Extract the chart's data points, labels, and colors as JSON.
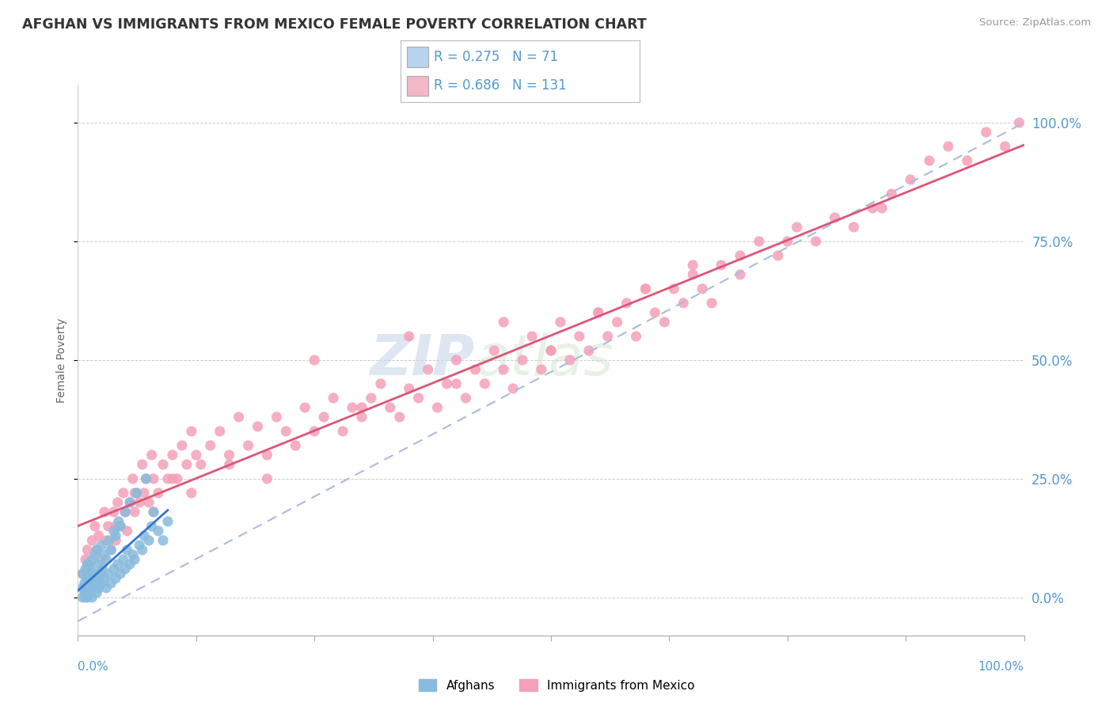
{
  "title": "AFGHAN VS IMMIGRANTS FROM MEXICO FEMALE POVERTY CORRELATION CHART",
  "source": "Source: ZipAtlas.com",
  "ylabel": "Female Poverty",
  "ytick_vals": [
    0.0,
    0.25,
    0.5,
    0.75,
    1.0
  ],
  "ytick_labels": [
    "0.0%",
    "25.0%",
    "50.0%",
    "75.0%",
    "100.0%"
  ],
  "xlim": [
    0.0,
    1.0
  ],
  "ylim": [
    -0.08,
    1.08
  ],
  "legend_afghan_R": "0.275",
  "legend_afghan_N": "71",
  "legend_mexico_R": "0.686",
  "legend_mexico_N": "131",
  "afghan_color": "#88bbdd",
  "mexico_color": "#f4a0b8",
  "afghan_line_color": "#3377cc",
  "mexico_line_color": "#dd5577",
  "mexico_dash_color": "#aabbdd",
  "legend_afghan_patch_color": "#b8d4ee",
  "legend_mexico_patch_color": "#f4b8c8",
  "background_color": "#ffffff",
  "grid_color": "#cccccc",
  "title_color": "#333333",
  "source_color": "#999999",
  "axis_label_color": "#5599cc",
  "watermark_text": "ZIP",
  "watermark_text2": "atlas",
  "bottom_legend_afghan_label": "Afghans",
  "bottom_legend_mexico_label": "Immigrants from Mexico",
  "afghan_x": [
    0.005,
    0.005,
    0.005,
    0.007,
    0.007,
    0.008,
    0.008,
    0.008,
    0.009,
    0.009,
    0.01,
    0.01,
    0.01,
    0.01,
    0.012,
    0.012,
    0.013,
    0.013,
    0.014,
    0.015,
    0.015,
    0.015,
    0.016,
    0.017,
    0.018,
    0.018,
    0.02,
    0.02,
    0.02,
    0.021,
    0.022,
    0.022,
    0.023,
    0.025,
    0.025,
    0.026,
    0.028,
    0.028,
    0.03,
    0.03,
    0.032,
    0.033,
    0.035,
    0.035,
    0.038,
    0.038,
    0.04,
    0.04,
    0.042,
    0.043,
    0.045,
    0.045,
    0.048,
    0.05,
    0.05,
    0.052,
    0.055,
    0.055,
    0.058,
    0.06,
    0.062,
    0.065,
    0.068,
    0.07,
    0.072,
    0.075,
    0.078,
    0.08,
    0.085,
    0.09,
    0.095
  ],
  "afghan_y": [
    0.0,
    0.02,
    0.05,
    0.01,
    0.03,
    0.0,
    0.02,
    0.06,
    0.01,
    0.04,
    0.0,
    0.02,
    0.04,
    0.07,
    0.01,
    0.05,
    0.02,
    0.06,
    0.03,
    0.0,
    0.03,
    0.08,
    0.04,
    0.02,
    0.05,
    0.09,
    0.01,
    0.04,
    0.1,
    0.03,
    0.02,
    0.07,
    0.05,
    0.03,
    0.11,
    0.06,
    0.04,
    0.09,
    0.02,
    0.08,
    0.05,
    0.12,
    0.03,
    0.1,
    0.06,
    0.14,
    0.04,
    0.13,
    0.07,
    0.16,
    0.05,
    0.15,
    0.08,
    0.06,
    0.18,
    0.1,
    0.07,
    0.2,
    0.09,
    0.08,
    0.22,
    0.11,
    0.1,
    0.13,
    0.25,
    0.12,
    0.15,
    0.18,
    0.14,
    0.12,
    0.16
  ],
  "mexico_x": [
    0.005,
    0.008,
    0.01,
    0.012,
    0.015,
    0.018,
    0.02,
    0.022,
    0.025,
    0.028,
    0.03,
    0.032,
    0.035,
    0.038,
    0.04,
    0.042,
    0.045,
    0.048,
    0.05,
    0.052,
    0.055,
    0.058,
    0.06,
    0.062,
    0.065,
    0.068,
    0.07,
    0.072,
    0.075,
    0.078,
    0.08,
    0.085,
    0.09,
    0.095,
    0.1,
    0.105,
    0.11,
    0.115,
    0.12,
    0.125,
    0.13,
    0.14,
    0.15,
    0.16,
    0.17,
    0.18,
    0.19,
    0.2,
    0.21,
    0.22,
    0.23,
    0.24,
    0.25,
    0.26,
    0.27,
    0.28,
    0.29,
    0.3,
    0.31,
    0.32,
    0.33,
    0.34,
    0.35,
    0.36,
    0.37,
    0.38,
    0.39,
    0.4,
    0.41,
    0.42,
    0.43,
    0.44,
    0.45,
    0.46,
    0.47,
    0.48,
    0.49,
    0.5,
    0.51,
    0.52,
    0.53,
    0.54,
    0.55,
    0.56,
    0.57,
    0.58,
    0.59,
    0.6,
    0.61,
    0.62,
    0.63,
    0.64,
    0.65,
    0.66,
    0.67,
    0.68,
    0.7,
    0.72,
    0.74,
    0.76,
    0.78,
    0.8,
    0.82,
    0.84,
    0.86,
    0.88,
    0.9,
    0.92,
    0.94,
    0.96,
    0.98,
    0.995,
    0.04,
    0.06,
    0.08,
    0.1,
    0.12,
    0.16,
    0.2,
    0.25,
    0.3,
    0.35,
    0.4,
    0.45,
    0.5,
    0.55,
    0.6,
    0.65,
    0.7,
    0.75,
    0.85
  ],
  "mexico_y": [
    0.05,
    0.08,
    0.1,
    0.07,
    0.12,
    0.15,
    0.1,
    0.13,
    0.08,
    0.18,
    0.12,
    0.15,
    0.1,
    0.18,
    0.12,
    0.2,
    0.15,
    0.22,
    0.18,
    0.14,
    0.2,
    0.25,
    0.18,
    0.22,
    0.2,
    0.28,
    0.22,
    0.25,
    0.2,
    0.3,
    0.25,
    0.22,
    0.28,
    0.25,
    0.3,
    0.25,
    0.32,
    0.28,
    0.35,
    0.3,
    0.28,
    0.32,
    0.35,
    0.3,
    0.38,
    0.32,
    0.36,
    0.3,
    0.38,
    0.35,
    0.32,
    0.4,
    0.35,
    0.38,
    0.42,
    0.35,
    0.4,
    0.38,
    0.42,
    0.45,
    0.4,
    0.38,
    0.44,
    0.42,
    0.48,
    0.4,
    0.45,
    0.5,
    0.42,
    0.48,
    0.45,
    0.52,
    0.48,
    0.44,
    0.5,
    0.55,
    0.48,
    0.52,
    0.58,
    0.5,
    0.55,
    0.52,
    0.6,
    0.55,
    0.58,
    0.62,
    0.55,
    0.65,
    0.6,
    0.58,
    0.65,
    0.62,
    0.68,
    0.65,
    0.62,
    0.7,
    0.72,
    0.75,
    0.72,
    0.78,
    0.75,
    0.8,
    0.78,
    0.82,
    0.85,
    0.88,
    0.92,
    0.95,
    0.92,
    0.98,
    0.95,
    1.0,
    0.15,
    0.22,
    0.18,
    0.25,
    0.22,
    0.28,
    0.25,
    0.5,
    0.4,
    0.55,
    0.45,
    0.58,
    0.52,
    0.6,
    0.65,
    0.7,
    0.68,
    0.75,
    0.82
  ]
}
